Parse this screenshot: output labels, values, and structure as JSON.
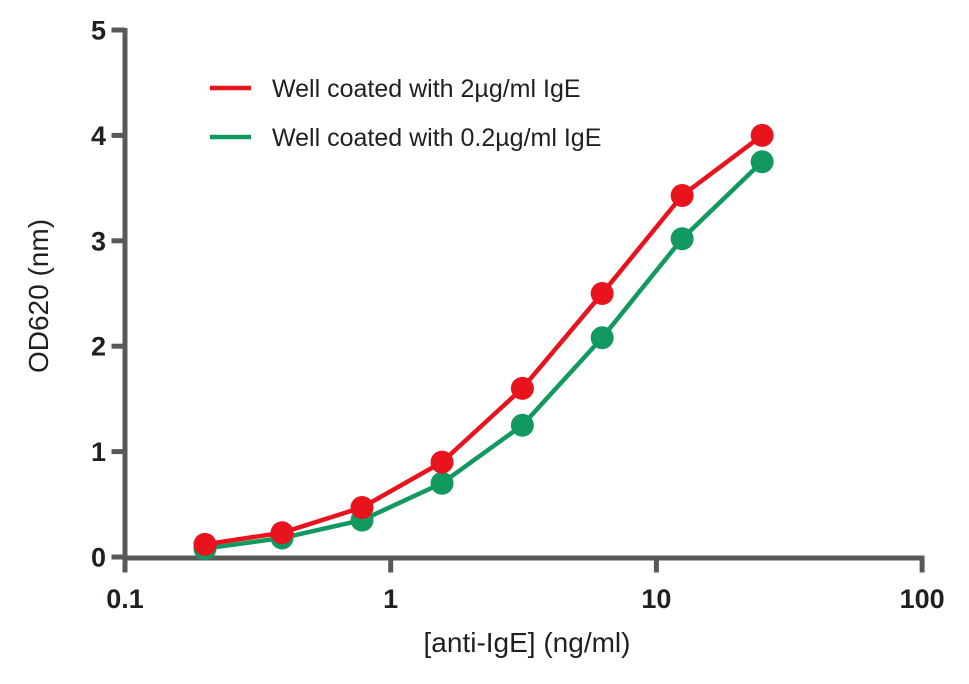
{
  "figure": {
    "background": "#ffffff",
    "axis_color": "#58595b",
    "text_color": "#231f20"
  },
  "chart_data": {
    "type": "line",
    "title": "",
    "xlabel": "[anti-IgE] (ng/ml)",
    "ylabel": "OD620 (nm)",
    "x_scale": "log",
    "y_scale": "linear",
    "xlim": [
      0.1,
      100
    ],
    "ylim": [
      0,
      5
    ],
    "x_ticks": [
      0.1,
      1,
      10,
      100
    ],
    "x_tick_labels": [
      "0.1",
      "1",
      "10",
      "100"
    ],
    "y_ticks": [
      0,
      1,
      2,
      3,
      4,
      5
    ],
    "y_tick_labels": [
      "0",
      "1",
      "2",
      "3",
      "4",
      "5"
    ],
    "grid": false,
    "legend_position": "inside-top-left",
    "x": [
      0.2,
      0.39,
      0.78,
      1.56,
      3.13,
      6.25,
      12.5,
      25
    ],
    "series": [
      {
        "name": "Well coated with 0.2µg/ml IgE",
        "color": "#12995f",
        "values": [
          0.08,
          0.18,
          0.35,
          0.7,
          1.25,
          2.08,
          3.02,
          3.75
        ]
      },
      {
        "name": "Well coated with 2µg/ml IgE",
        "color": "#e8131d",
        "values": [
          0.12,
          0.23,
          0.47,
          0.9,
          1.6,
          2.5,
          3.43,
          4.0
        ]
      }
    ]
  },
  "legend": {
    "items": [
      {
        "label": "Well coated with 2µg/ml IgE",
        "color": "#e8131d"
      },
      {
        "label": "Well coated with 0.2µg/ml IgE",
        "color": "#12995f"
      }
    ]
  }
}
